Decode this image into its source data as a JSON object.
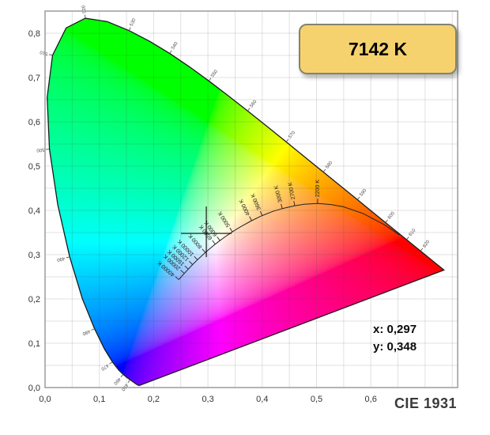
{
  "badge": {
    "label": "7142 K",
    "fill": "#f6d26e",
    "border_color": "#83836d",
    "text_color": "#000000"
  },
  "readout": {
    "x": "x: 0,297",
    "y": "y: 0,348"
  },
  "footer": {
    "label": "CIE 1931"
  },
  "chart_data": {
    "type": "scatter",
    "subtype": "cie-1931-chromaticity-diagram",
    "title": "CIE 1931",
    "grid": true,
    "x_axis": {
      "min": 0,
      "max": 0.76,
      "grid_step": 0.05,
      "ticks": [
        {
          "v": 0.0,
          "label": "0,0"
        },
        {
          "v": 0.1,
          "label": "0,1"
        },
        {
          "v": 0.2,
          "label": "0,2"
        },
        {
          "v": 0.3,
          "label": "0,3"
        },
        {
          "v": 0.4,
          "label": "0,4"
        },
        {
          "v": 0.5,
          "label": "0,5"
        },
        {
          "v": 0.6,
          "label": "0,6"
        }
      ]
    },
    "y_axis": {
      "min": 0,
      "max": 0.85,
      "grid_step": 0.05,
      "ticks": [
        {
          "v": 0.0,
          "label": "0,0"
        },
        {
          "v": 0.1,
          "label": "0,1"
        },
        {
          "v": 0.2,
          "label": "0,2"
        },
        {
          "v": 0.3,
          "label": "0,3"
        },
        {
          "v": 0.4,
          "label": "0,4"
        },
        {
          "v": 0.5,
          "label": "0,5"
        },
        {
          "v": 0.6,
          "label": "0,6"
        },
        {
          "v": 0.7,
          "label": "0,7"
        },
        {
          "v": 0.8,
          "label": "0,8"
        }
      ]
    },
    "marker": {
      "x": 0.297,
      "y": 0.348,
      "cct_kelvin": 7142
    },
    "spectral_locus": [
      [
        380,
        0.1741,
        0.005
      ],
      [
        410,
        0.1726,
        0.0048
      ],
      [
        430,
        0.1689,
        0.0069
      ],
      [
        440,
        0.1644,
        0.0109
      ],
      [
        450,
        0.1566,
        0.0177
      ],
      [
        455,
        0.151,
        0.0227
      ],
      [
        460,
        0.144,
        0.0297
      ],
      [
        465,
        0.1355,
        0.0399
      ],
      [
        470,
        0.1241,
        0.0578
      ],
      [
        475,
        0.1096,
        0.0868
      ],
      [
        480,
        0.0913,
        0.1327
      ],
      [
        485,
        0.0687,
        0.2007
      ],
      [
        490,
        0.0454,
        0.295
      ],
      [
        495,
        0.0235,
        0.4127
      ],
      [
        500,
        0.0082,
        0.5384
      ],
      [
        505,
        0.0039,
        0.6548
      ],
      [
        510,
        0.0139,
        0.7502
      ],
      [
        515,
        0.0389,
        0.812
      ],
      [
        520,
        0.0743,
        0.8338
      ],
      [
        525,
        0.1142,
        0.8262
      ],
      [
        530,
        0.1547,
        0.8059
      ],
      [
        535,
        0.1929,
        0.7816
      ],
      [
        540,
        0.2296,
        0.7543
      ],
      [
        545,
        0.2658,
        0.7243
      ],
      [
        550,
        0.3016,
        0.6923
      ],
      [
        555,
        0.3373,
        0.6589
      ],
      [
        560,
        0.3731,
        0.6245
      ],
      [
        565,
        0.4087,
        0.5896
      ],
      [
        570,
        0.4441,
        0.5547
      ],
      [
        575,
        0.4788,
        0.5202
      ],
      [
        580,
        0.5125,
        0.4866
      ],
      [
        585,
        0.5448,
        0.4544
      ],
      [
        590,
        0.5752,
        0.4242
      ],
      [
        595,
        0.6029,
        0.3965
      ],
      [
        600,
        0.627,
        0.3725
      ],
      [
        605,
        0.6482,
        0.3514
      ],
      [
        610,
        0.6658,
        0.334
      ],
      [
        615,
        0.6801,
        0.3197
      ],
      [
        620,
        0.6915,
        0.3083
      ],
      [
        630,
        0.7079,
        0.292
      ],
      [
        640,
        0.719,
        0.2809
      ],
      [
        650,
        0.726,
        0.274
      ],
      [
        700,
        0.7347,
        0.2653
      ]
    ],
    "wavelength_ticks": [
      {
        "wl": 450,
        "label": "450"
      },
      {
        "wl": 460,
        "label": "460"
      },
      {
        "wl": 470,
        "label": "470"
      },
      {
        "wl": 480,
        "label": "480"
      },
      {
        "wl": 490,
        "label": "490"
      },
      {
        "wl": 500,
        "label": "500"
      },
      {
        "wl": 510,
        "label": "510"
      },
      {
        "wl": 520,
        "label": "520"
      },
      {
        "wl": 530,
        "label": "530"
      },
      {
        "wl": 540,
        "label": "540"
      },
      {
        "wl": 550,
        "label": "550"
      },
      {
        "wl": 560,
        "label": "560"
      },
      {
        "wl": 570,
        "label": "570"
      },
      {
        "wl": 580,
        "label": "580"
      },
      {
        "wl": 590,
        "label": "590"
      },
      {
        "wl": 600,
        "label": "600"
      },
      {
        "wl": 610,
        "label": "610"
      },
      {
        "wl": 620,
        "label": "620"
      }
    ],
    "planckian_locus": [
      [
        40000,
        0.2464,
        0.2437
      ],
      [
        30000,
        0.2501,
        0.2489
      ],
      [
        20000,
        0.2565,
        0.2577
      ],
      [
        15000,
        0.2637,
        0.2673
      ],
      [
        12000,
        0.2717,
        0.2776
      ],
      [
        10000,
        0.2807,
        0.2884
      ],
      [
        9000,
        0.2869,
        0.2956
      ],
      [
        8000,
        0.2952,
        0.3048
      ],
      [
        7000,
        0.3064,
        0.3166
      ],
      [
        6500,
        0.3135,
        0.3237
      ],
      [
        6000,
        0.3221,
        0.3318
      ],
      [
        5500,
        0.3325,
        0.3411
      ],
      [
        5000,
        0.3451,
        0.3516
      ],
      [
        4500,
        0.3608,
        0.3636
      ],
      [
        4000,
        0.3805,
        0.3768
      ],
      [
        3600,
        0.3999,
        0.3882
      ],
      [
        3300,
        0.4193,
        0.3976
      ],
      [
        3000,
        0.4369,
        0.4041
      ],
      [
        2700,
        0.4599,
        0.4106
      ],
      [
        2500,
        0.477,
        0.4137
      ],
      [
        2200,
        0.502,
        0.4156
      ],
      [
        2000,
        0.5267,
        0.4133
      ],
      [
        1800,
        0.5493,
        0.4082
      ],
      [
        1500,
        0.5857,
        0.3931
      ],
      [
        1200,
        0.6251,
        0.3675
      ],
      [
        1000,
        0.6528,
        0.3444
      ]
    ],
    "cct_ticks": [
      {
        "kelvin": 2200,
        "label": "2200 K"
      },
      {
        "kelvin": 2700,
        "label": "2700 K"
      },
      {
        "kelvin": 3000,
        "label": "3000 K"
      },
      {
        "kelvin": 3600,
        "label": "3600 K"
      },
      {
        "kelvin": 4000,
        "label": "4000 K"
      },
      {
        "kelvin": 5000,
        "label": "5000 K"
      },
      {
        "kelvin": 6000,
        "label": "6000 K"
      },
      {
        "kelvin": 6500,
        "label": "6500 K"
      },
      {
        "kelvin": 8000,
        "label": "8000 K"
      },
      {
        "kelvin": 10000,
        "label": "10000 K"
      },
      {
        "kelvin": 12000,
        "label": "12000 K"
      },
      {
        "kelvin": 15000,
        "label": "15000 K"
      },
      {
        "kelvin": 20000,
        "label": "20000 K"
      },
      {
        "kelvin": 40000,
        "label": "40000 K"
      }
    ]
  }
}
